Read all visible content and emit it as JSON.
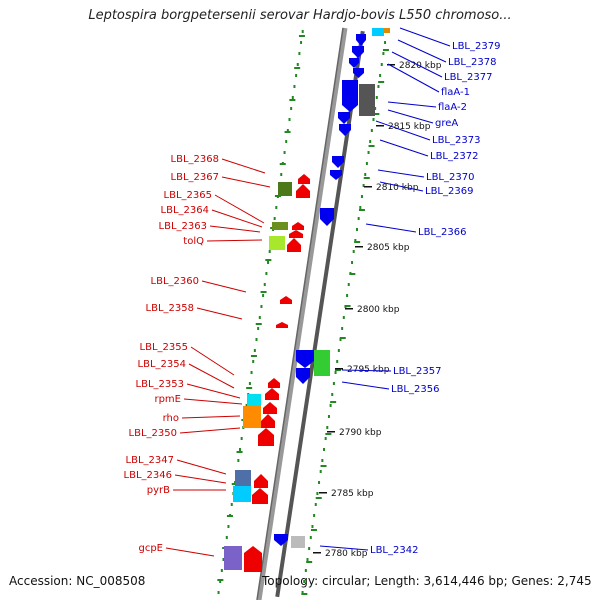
{
  "title": "Leptospira borgpetersenii serovar Hardjo-bovis L550 chromoso...",
  "footer": {
    "accession": "Accession: NC_008508",
    "topology": "Topology: circular; Length: 3,614,446 bp; Genes: 2,745"
  },
  "colors": {
    "forward_strand": "#ee0000",
    "reverse_strand": "#0000ee",
    "label_red": "#cc0000",
    "label_blue": "#0000cc",
    "backbone": "#888888",
    "tick_green": "#228822"
  },
  "ruler": [
    {
      "label": "2820 kbp"
    },
    {
      "label": "2815 kbp"
    },
    {
      "label": "2810 kbp"
    },
    {
      "label": "2805 kbp"
    },
    {
      "label": "2800 kbp"
    },
    {
      "label": "2795 kbp"
    },
    {
      "label": "2790 kbp"
    },
    {
      "label": "2785 kbp"
    },
    {
      "label": "2780 kbp"
    }
  ],
  "left_labels": [
    "LBL_2368",
    "LBL_2367",
    "LBL_2365",
    "LBL_2364",
    "LBL_2363",
    "tolQ",
    "LBL_2360",
    "LBL_2358",
    "LBL_2355",
    "LBL_2354",
    "LBL_2353",
    "rpmE",
    "rho",
    "LBL_2350",
    "LBL_2347",
    "LBL_2346",
    "pyrB",
    "gcpE"
  ],
  "right_labels": [
    "LBL_2379",
    "LBL_2378",
    "LBL_2377",
    "flaA-1",
    "flaA-2",
    "greA",
    "LBL_2373",
    "LBL_2372",
    "LBL_2370",
    "LBL_2369",
    "LBL_2366",
    "LBL_2357",
    "LBL_2356",
    "LBL_2342"
  ]
}
